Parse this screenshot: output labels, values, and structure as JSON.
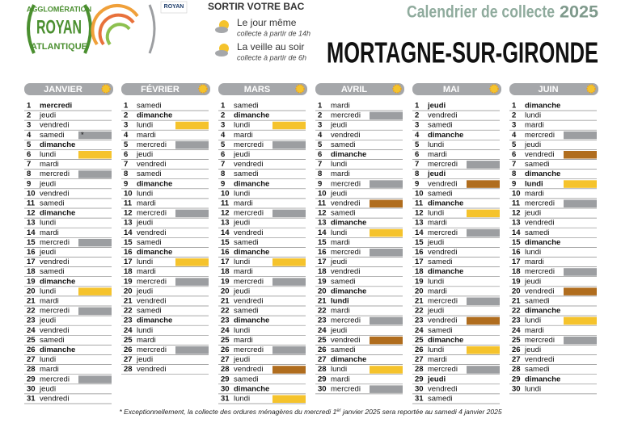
{
  "header": {
    "logo": [
      "AGGLOMÉRATION",
      "ROYAN",
      "ATLANTIQUE"
    ],
    "badge": "ROYAN",
    "instructions": "SORTIR VOTRE BAC",
    "options": [
      {
        "label": "Le jour même",
        "detail": "collecte à partir de 14h"
      },
      {
        "label": "La veille au soir",
        "detail": "collecte à partir de 6h"
      }
    ],
    "title": "Calendrier de collecte",
    "year": "2025",
    "commune": "MORTAGNE-SUR-GIRONDE"
  },
  "bin_colors": {
    "gris": "#9c9ea1",
    "jaune": "#f5c32c",
    "marron": "#b06d1e"
  },
  "months": [
    {
      "name": "JANVIER",
      "days": [
        {
          "d": 1,
          "w": "mercredi",
          "b": true
        },
        {
          "d": 2,
          "w": "jeudi"
        },
        {
          "d": 3,
          "w": "vendredi"
        },
        {
          "d": 4,
          "w": "samedi",
          "bin": "gris",
          "note": "*"
        },
        {
          "d": 5,
          "w": "dimanche",
          "b": true
        },
        {
          "d": 6,
          "w": "lundi",
          "bin": "jaune"
        },
        {
          "d": 7,
          "w": "mardi"
        },
        {
          "d": 8,
          "w": "mercredi",
          "bin": "gris"
        },
        {
          "d": 9,
          "w": "jeudi"
        },
        {
          "d": 10,
          "w": "vendredi"
        },
        {
          "d": 11,
          "w": "samedi"
        },
        {
          "d": 12,
          "w": "dimanche",
          "b": true
        },
        {
          "d": 13,
          "w": "lundi"
        },
        {
          "d": 14,
          "w": "mardi"
        },
        {
          "d": 15,
          "w": "mercredi",
          "bin": "gris"
        },
        {
          "d": 16,
          "w": "jeudi"
        },
        {
          "d": 17,
          "w": "vendredi"
        },
        {
          "d": 18,
          "w": "samedi"
        },
        {
          "d": 19,
          "w": "dimanche",
          "b": true
        },
        {
          "d": 20,
          "w": "lundi",
          "bin": "jaune"
        },
        {
          "d": 21,
          "w": "mardi"
        },
        {
          "d": 22,
          "w": "mercredi",
          "bin": "gris"
        },
        {
          "d": 23,
          "w": "jeudi"
        },
        {
          "d": 24,
          "w": "vendredi"
        },
        {
          "d": 25,
          "w": "samedi"
        },
        {
          "d": 26,
          "w": "dimanche",
          "b": true
        },
        {
          "d": 27,
          "w": "lundi"
        },
        {
          "d": 28,
          "w": "mardi"
        },
        {
          "d": 29,
          "w": "mercredi",
          "bin": "gris"
        },
        {
          "d": 30,
          "w": "jeudi"
        },
        {
          "d": 31,
          "w": "vendredi"
        }
      ]
    },
    {
      "name": "FÉVRIER",
      "days": [
        {
          "d": 1,
          "w": "samedi"
        },
        {
          "d": 2,
          "w": "dimanche",
          "b": true
        },
        {
          "d": 3,
          "w": "lundi",
          "bin": "jaune"
        },
        {
          "d": 4,
          "w": "mardi"
        },
        {
          "d": 5,
          "w": "mercredi",
          "bin": "gris"
        },
        {
          "d": 6,
          "w": "jeudi"
        },
        {
          "d": 7,
          "w": "vendredi"
        },
        {
          "d": 8,
          "w": "samedi"
        },
        {
          "d": 9,
          "w": "dimanche",
          "b": true
        },
        {
          "d": 10,
          "w": "lundi"
        },
        {
          "d": 11,
          "w": "mardi"
        },
        {
          "d": 12,
          "w": "mercredi",
          "bin": "gris"
        },
        {
          "d": 13,
          "w": "jeudi"
        },
        {
          "d": 14,
          "w": "vendredi"
        },
        {
          "d": 15,
          "w": "samedi"
        },
        {
          "d": 16,
          "w": "dimanche",
          "b": true
        },
        {
          "d": 17,
          "w": "lundi",
          "bin": "jaune"
        },
        {
          "d": 18,
          "w": "mardi"
        },
        {
          "d": 19,
          "w": "mercredi",
          "bin": "gris"
        },
        {
          "d": 20,
          "w": "jeudi"
        },
        {
          "d": 21,
          "w": "vendredi"
        },
        {
          "d": 22,
          "w": "samedi"
        },
        {
          "d": 23,
          "w": "dimanche",
          "b": true
        },
        {
          "d": 24,
          "w": "lundi"
        },
        {
          "d": 25,
          "w": "mardi"
        },
        {
          "d": 26,
          "w": "mercredi",
          "bin": "gris"
        },
        {
          "d": 27,
          "w": "jeudi"
        },
        {
          "d": 28,
          "w": "vendredi"
        }
      ]
    },
    {
      "name": "MARS",
      "days": [
        {
          "d": 1,
          "w": "samedi"
        },
        {
          "d": 2,
          "w": "dimanche",
          "b": true
        },
        {
          "d": 3,
          "w": "lundi",
          "bin": "jaune"
        },
        {
          "d": 4,
          "w": "mardi"
        },
        {
          "d": 5,
          "w": "mercredi",
          "bin": "gris"
        },
        {
          "d": 6,
          "w": "jeudi"
        },
        {
          "d": 7,
          "w": "vendredi"
        },
        {
          "d": 8,
          "w": "samedi"
        },
        {
          "d": 9,
          "w": "dimanche",
          "b": true
        },
        {
          "d": 10,
          "w": "lundi"
        },
        {
          "d": 11,
          "w": "mardi"
        },
        {
          "d": 12,
          "w": "mercredi",
          "bin": "gris"
        },
        {
          "d": 13,
          "w": "jeudi"
        },
        {
          "d": 14,
          "w": "vendredi"
        },
        {
          "d": 15,
          "w": "samedi"
        },
        {
          "d": 16,
          "w": "dimanche",
          "b": true
        },
        {
          "d": 17,
          "w": "lundi",
          "bin": "jaune"
        },
        {
          "d": 18,
          "w": "mardi"
        },
        {
          "d": 19,
          "w": "mercredi",
          "bin": "gris"
        },
        {
          "d": 20,
          "w": "jeudi"
        },
        {
          "d": 21,
          "w": "vendredi"
        },
        {
          "d": 22,
          "w": "samedi"
        },
        {
          "d": 23,
          "w": "dimanche",
          "b": true
        },
        {
          "d": 24,
          "w": "lundi"
        },
        {
          "d": 25,
          "w": "mardi"
        },
        {
          "d": 26,
          "w": "mercredi",
          "bin": "gris"
        },
        {
          "d": 27,
          "w": "jeudi"
        },
        {
          "d": 28,
          "w": "vendredi",
          "bin": "marron"
        },
        {
          "d": 29,
          "w": "samedi"
        },
        {
          "d": 30,
          "w": "dimanche",
          "b": true
        },
        {
          "d": 31,
          "w": "lundi",
          "bin": "jaune"
        }
      ]
    },
    {
      "name": "AVRIL",
      "days": [
        {
          "d": 1,
          "w": "mardi"
        },
        {
          "d": 2,
          "w": "mercredi",
          "bin": "gris"
        },
        {
          "d": 3,
          "w": "jeudi"
        },
        {
          "d": 4,
          "w": "vendredi"
        },
        {
          "d": 5,
          "w": "samedi"
        },
        {
          "d": 6,
          "w": "dimanche",
          "b": true
        },
        {
          "d": 7,
          "w": "lundi"
        },
        {
          "d": 8,
          "w": "mardi"
        },
        {
          "d": 9,
          "w": "mercredi",
          "bin": "gris"
        },
        {
          "d": 10,
          "w": "jeudi"
        },
        {
          "d": 11,
          "w": "vendredi",
          "bin": "marron"
        },
        {
          "d": 12,
          "w": "samedi"
        },
        {
          "d": 13,
          "w": "dimanche",
          "b": true
        },
        {
          "d": 14,
          "w": "lundi",
          "bin": "jaune"
        },
        {
          "d": 15,
          "w": "mardi"
        },
        {
          "d": 16,
          "w": "mercredi",
          "bin": "gris"
        },
        {
          "d": 17,
          "w": "jeudi"
        },
        {
          "d": 18,
          "w": "vendredi"
        },
        {
          "d": 19,
          "w": "samedi"
        },
        {
          "d": 20,
          "w": "dimanche",
          "b": true
        },
        {
          "d": 21,
          "w": "lundi",
          "b": true
        },
        {
          "d": 22,
          "w": "mardi"
        },
        {
          "d": 23,
          "w": "mercredi",
          "bin": "gris"
        },
        {
          "d": 24,
          "w": "jeudi"
        },
        {
          "d": 25,
          "w": "vendredi",
          "bin": "marron"
        },
        {
          "d": 26,
          "w": "samedi"
        },
        {
          "d": 27,
          "w": "dimanche",
          "b": true
        },
        {
          "d": 28,
          "w": "lundi",
          "bin": "jaune"
        },
        {
          "d": 29,
          "w": "mardi"
        },
        {
          "d": 30,
          "w": "mercredi",
          "bin": "gris"
        }
      ]
    },
    {
      "name": "MAI",
      "days": [
        {
          "d": 1,
          "w": "jeudi",
          "b": true
        },
        {
          "d": 2,
          "w": "vendredi"
        },
        {
          "d": 3,
          "w": "samedi"
        },
        {
          "d": 4,
          "w": "dimanche",
          "b": true
        },
        {
          "d": 5,
          "w": "lundi"
        },
        {
          "d": 6,
          "w": "mardi"
        },
        {
          "d": 7,
          "w": "mercredi",
          "bin": "gris"
        },
        {
          "d": 8,
          "w": "jeudi",
          "b": true
        },
        {
          "d": 9,
          "w": "vendredi",
          "bin": "marron"
        },
        {
          "d": 10,
          "w": "samedi"
        },
        {
          "d": 11,
          "w": "dimanche",
          "b": true
        },
        {
          "d": 12,
          "w": "lundi",
          "bin": "jaune"
        },
        {
          "d": 13,
          "w": "mardi"
        },
        {
          "d": 14,
          "w": "mercredi",
          "bin": "gris"
        },
        {
          "d": 15,
          "w": "jeudi"
        },
        {
          "d": 16,
          "w": "vendredi"
        },
        {
          "d": 17,
          "w": "samedi"
        },
        {
          "d": 18,
          "w": "dimanche",
          "b": true
        },
        {
          "d": 19,
          "w": "lundi"
        },
        {
          "d": 20,
          "w": "mardi"
        },
        {
          "d": 21,
          "w": "mercredi",
          "bin": "gris"
        },
        {
          "d": 22,
          "w": "jeudi"
        },
        {
          "d": 23,
          "w": "vendredi",
          "bin": "marron"
        },
        {
          "d": 24,
          "w": "samedi"
        },
        {
          "d": 25,
          "w": "dimanche",
          "b": true
        },
        {
          "d": 26,
          "w": "lundi",
          "bin": "jaune"
        },
        {
          "d": 27,
          "w": "mardi"
        },
        {
          "d": 28,
          "w": "mercredi",
          "bin": "gris"
        },
        {
          "d": 29,
          "w": "jeudi",
          "b": true
        },
        {
          "d": 30,
          "w": "vendredi"
        },
        {
          "d": 31,
          "w": "samedi"
        }
      ]
    },
    {
      "name": "JUIN",
      "days": [
        {
          "d": 1,
          "w": "dimanche",
          "b": true
        },
        {
          "d": 2,
          "w": "lundi"
        },
        {
          "d": 3,
          "w": "mardi"
        },
        {
          "d": 4,
          "w": "mercredi",
          "bin": "gris"
        },
        {
          "d": 5,
          "w": "jeudi"
        },
        {
          "d": 6,
          "w": "vendredi",
          "bin": "marron"
        },
        {
          "d": 7,
          "w": "samedi"
        },
        {
          "d": 8,
          "w": "dimanche",
          "b": true
        },
        {
          "d": 9,
          "w": "lundi",
          "b": true,
          "bin": "jaune"
        },
        {
          "d": 10,
          "w": "mardi"
        },
        {
          "d": 11,
          "w": "mercredi",
          "bin": "gris"
        },
        {
          "d": 12,
          "w": "jeudi"
        },
        {
          "d": 13,
          "w": "vendredi"
        },
        {
          "d": 14,
          "w": "samedi"
        },
        {
          "d": 15,
          "w": "dimanche",
          "b": true
        },
        {
          "d": 16,
          "w": "lundi"
        },
        {
          "d": 17,
          "w": "mardi"
        },
        {
          "d": 18,
          "w": "mercredi",
          "bin": "gris"
        },
        {
          "d": 19,
          "w": "jeudi"
        },
        {
          "d": 20,
          "w": "vendredi",
          "bin": "marron"
        },
        {
          "d": 21,
          "w": "samedi"
        },
        {
          "d": 22,
          "w": "dimanche",
          "b": true
        },
        {
          "d": 23,
          "w": "lundi",
          "bin": "jaune"
        },
        {
          "d": 24,
          "w": "mardi"
        },
        {
          "d": 25,
          "w": "mercredi",
          "bin": "gris"
        },
        {
          "d": 26,
          "w": "jeudi"
        },
        {
          "d": 27,
          "w": "vendredi"
        },
        {
          "d": 28,
          "w": "samedi"
        },
        {
          "d": 29,
          "w": "dimanche",
          "b": true
        },
        {
          "d": 30,
          "w": "lundi"
        }
      ]
    }
  ],
  "footnote": [
    "* Exceptionnellement, la collecte des ordures ménagères du mercredi 1",
    "er",
    " janvier 2025 sera reportée au samedi 4 janvier 2025"
  ]
}
